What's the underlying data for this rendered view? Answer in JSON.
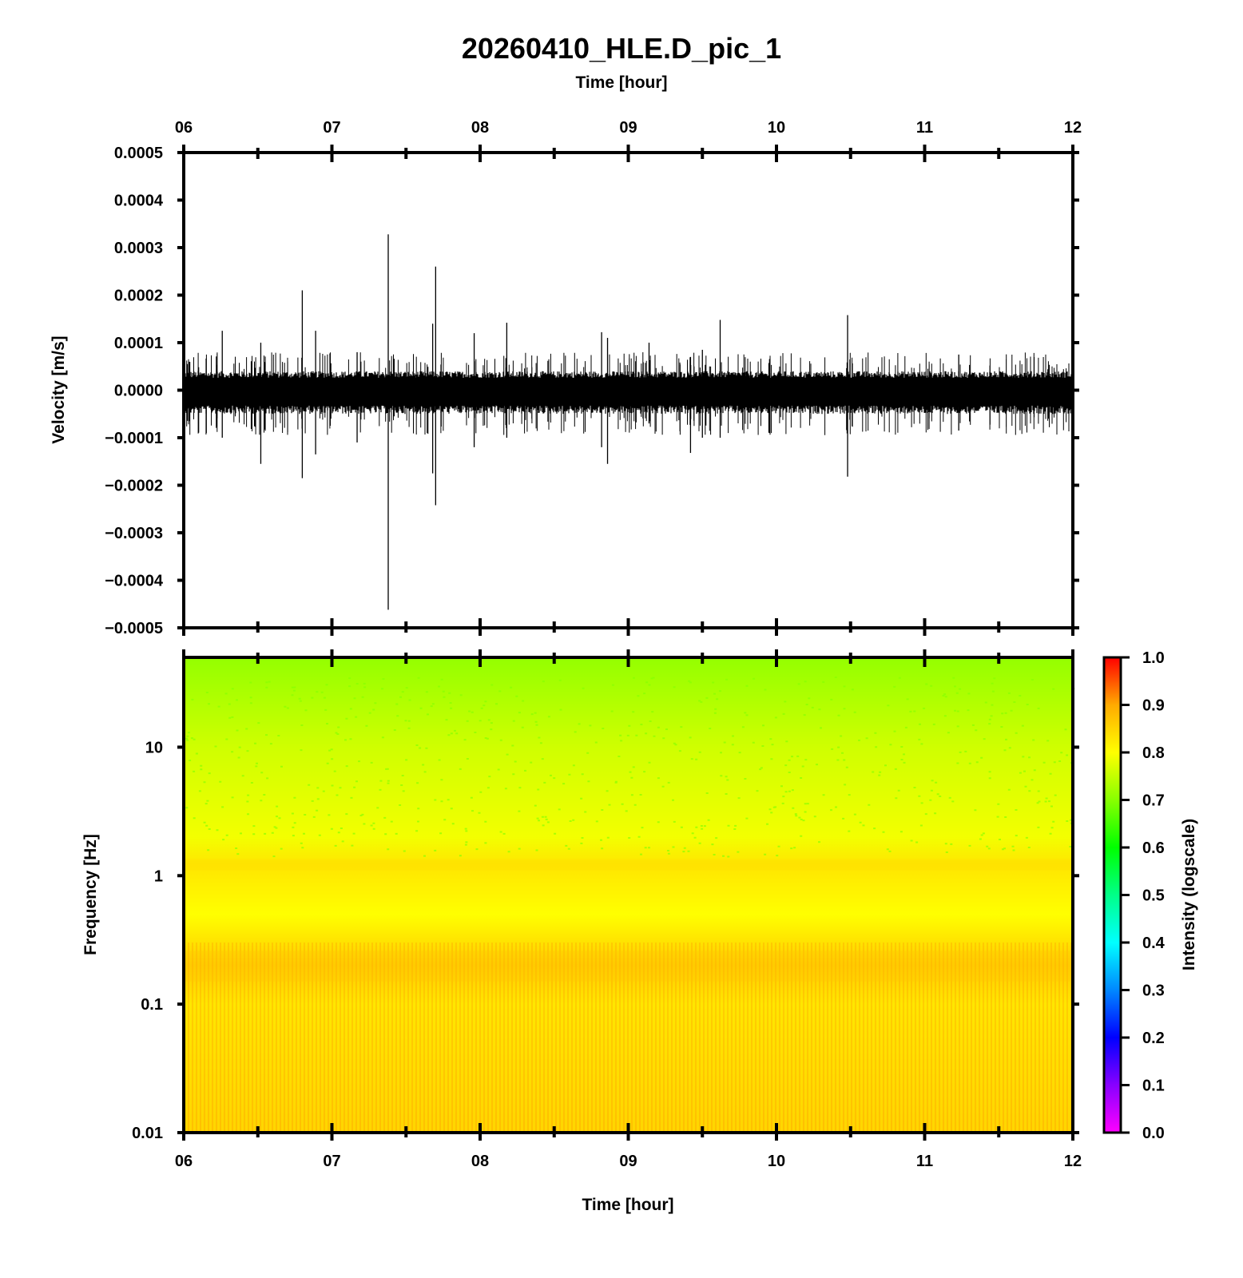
{
  "chart_data": [
    {
      "type": "line",
      "title": "20260410_HLE.D_pic_1",
      "xlabel": "Time [hour]",
      "ylabel": "Velocity [m/s]",
      "xlim": [
        6,
        12
      ],
      "ylim": [
        -0.0005,
        0.0005
      ],
      "x_ticks": [
        "06",
        "07",
        "08",
        "09",
        "10",
        "11",
        "12"
      ],
      "y_ticks": [
        "0.0005",
        "0.0004",
        "0.0003",
        "0.0002",
        "0.0001",
        "0.0000",
        "−0.0001",
        "−0.0002",
        "−0.0003",
        "−0.0004",
        "−0.0005"
      ],
      "grid": false,
      "series": [
        {
          "noise_band": [
            -5e-05,
            4e-05
          ],
          "spikes": [
            {
              "x": 6.26,
              "max": 0.000125,
              "min": -0.0001
            },
            {
              "x": 6.52,
              "max": 0.0001,
              "min": -0.000155
            },
            {
              "x": 6.8,
              "max": 0.00021,
              "min": -0.000185
            },
            {
              "x": 6.89,
              "max": 0.000125,
              "min": -0.000135
            },
            {
              "x": 7.17,
              "max": 8e-05,
              "min": -0.00011
            },
            {
              "x": 7.38,
              "max": 0.000328,
              "min": -0.000462
            },
            {
              "x": 7.7,
              "max": 0.00026,
              "min": -0.000242
            },
            {
              "x": 7.68,
              "max": 0.00014,
              "min": -0.000175
            },
            {
              "x": 7.96,
              "max": 0.00012,
              "min": -0.00012
            },
            {
              "x": 8.18,
              "max": 0.000142,
              "min": -0.0001
            },
            {
              "x": 8.82,
              "max": 0.000122,
              "min": -0.00012
            },
            {
              "x": 8.86,
              "max": 0.00011,
              "min": -0.000155
            },
            {
              "x": 9.14,
              "max": 0.0001,
              "min": -7e-05
            },
            {
              "x": 9.42,
              "max": 7e-05,
              "min": -0.000132
            },
            {
              "x": 9.5,
              "max": 8.5e-05,
              "min": -0.0001
            },
            {
              "x": 9.62,
              "max": 0.000148,
              "min": -0.0001
            },
            {
              "x": 10.48,
              "max": 0.000158,
              "min": -0.000182
            },
            {
              "x": 11.23,
              "max": 7.5e-05,
              "min": -8.5e-05
            }
          ]
        }
      ]
    },
    {
      "type": "heatmap",
      "xlabel": "Time [hour]",
      "ylabel": "Frequency [Hz]",
      "xlim": [
        6,
        12
      ],
      "ylim": [
        0.01,
        50
      ],
      "y_scale": "log",
      "x_ticks": [
        "06",
        "07",
        "08",
        "09",
        "10",
        "11",
        "12"
      ],
      "y_ticks": [
        "10",
        "1",
        "0.1",
        "0.01"
      ],
      "colorbar": {
        "label": "Intensity (logscale)",
        "range": [
          0,
          1
        ],
        "ticks": [
          "1.0",
          "0.9",
          "0.8",
          "0.7",
          "0.6",
          "0.5",
          "0.4",
          "0.3",
          "0.2",
          "0.1",
          "0.0"
        ],
        "colors": [
          "#ff00ff",
          "#8800ff",
          "#0000ff",
          "#0088ff",
          "#00ffff",
          "#00ff88",
          "#00ff00",
          "#88ff00",
          "#ffff00",
          "#ffaa00",
          "#ff0000"
        ]
      },
      "intensity_profile": [
        {
          "freq": 0.01,
          "intensity": 0.85
        },
        {
          "freq": 0.1,
          "intensity": 0.83
        },
        {
          "freq": 0.2,
          "intensity": 0.86
        },
        {
          "freq": 0.5,
          "intensity": 0.8
        },
        {
          "freq": 1.2,
          "intensity": 0.83
        },
        {
          "freq": 2,
          "intensity": 0.79
        },
        {
          "freq": 10,
          "intensity": 0.76
        },
        {
          "freq": 50,
          "intensity": 0.71
        }
      ]
    }
  ]
}
